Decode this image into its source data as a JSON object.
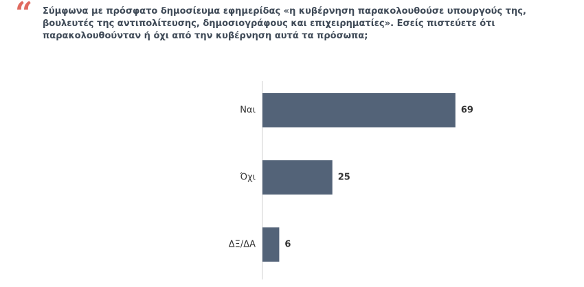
{
  "chart_data": {
    "type": "bar",
    "orientation": "horizontal",
    "title": "Σύμφωνα με πρόσφατο δημοσίευμα εφημερίδας «η κυβέρνηση παρακολουθούσε υπουργούς της, βουλευτές της αντιπολίτευσης, δημοσιογράφους και επιχειρηματίες». Εσείς πιστεύετε ότι παρακολουθούνταν ή όχι από την κυβέρνηση αυτά τα πρόσωπα;",
    "categories": [
      "Ναι",
      "Όχι",
      "ΔΞ/ΔΑ"
    ],
    "values": [
      69,
      25,
      6
    ],
    "color": "#536378"
  }
}
